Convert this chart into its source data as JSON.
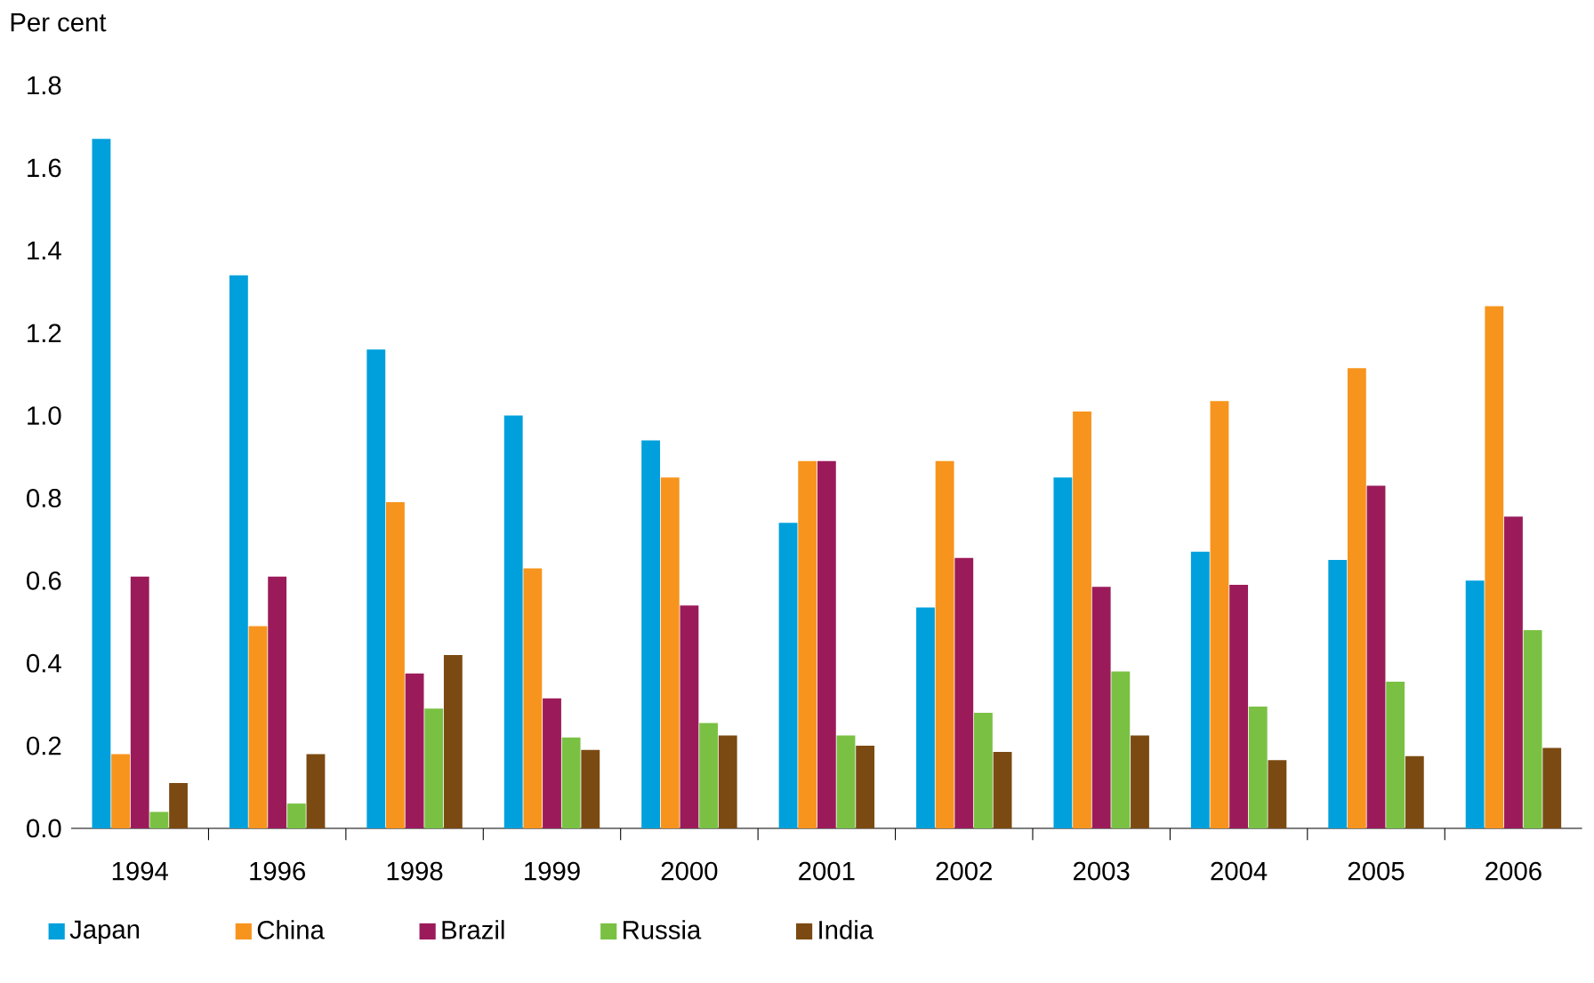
{
  "chart_data": {
    "type": "bar",
    "ylabel": "Per cent",
    "categories": [
      "1994",
      "1996",
      "1998",
      "1999",
      "2000",
      "2001",
      "2002",
      "2003",
      "2004",
      "2005",
      "2006"
    ],
    "series": [
      {
        "name": "Japan",
        "color": "#00a0dc",
        "values": [
          1.67,
          1.34,
          1.16,
          1.0,
          0.94,
          0.74,
          0.535,
          0.85,
          0.67,
          0.65,
          0.6
        ]
      },
      {
        "name": "China",
        "color": "#f7941d",
        "values": [
          0.18,
          0.49,
          0.79,
          0.63,
          0.85,
          0.89,
          0.89,
          1.01,
          1.035,
          1.115,
          1.265
        ]
      },
      {
        "name": "Brazil",
        "color": "#9b1b5a",
        "values": [
          0.61,
          0.61,
          0.375,
          0.315,
          0.54,
          0.89,
          0.655,
          0.585,
          0.59,
          0.83,
          0.755
        ]
      },
      {
        "name": "Russia",
        "color": "#7ac143",
        "values": [
          0.04,
          0.06,
          0.29,
          0.22,
          0.255,
          0.225,
          0.28,
          0.38,
          0.295,
          0.355,
          0.48
        ]
      },
      {
        "name": "India",
        "color": "#7b4a12",
        "values": [
          0.11,
          0.18,
          0.42,
          0.19,
          0.225,
          0.2,
          0.185,
          0.225,
          0.165,
          0.175,
          0.195
        ]
      }
    ],
    "ylim": [
      0,
      1.8
    ],
    "yticks": [
      {
        "value": 0,
        "label": "0.0"
      },
      {
        "value": 0.2,
        "label": "0.2"
      },
      {
        "value": 0.4,
        "label": "0.4"
      },
      {
        "value": 0.6,
        "label": "0.6"
      },
      {
        "value": 0.8,
        "label": "0.8"
      },
      {
        "value": 1.0,
        "label": "1.0"
      },
      {
        "value": 1.2,
        "label": "1.2"
      },
      {
        "value": 1.4,
        "label": "1.4"
      },
      {
        "value": 1.6,
        "label": "1.6"
      },
      {
        "value": 1.8,
        "label": "1.8"
      }
    ],
    "legend": "bottom left"
  }
}
